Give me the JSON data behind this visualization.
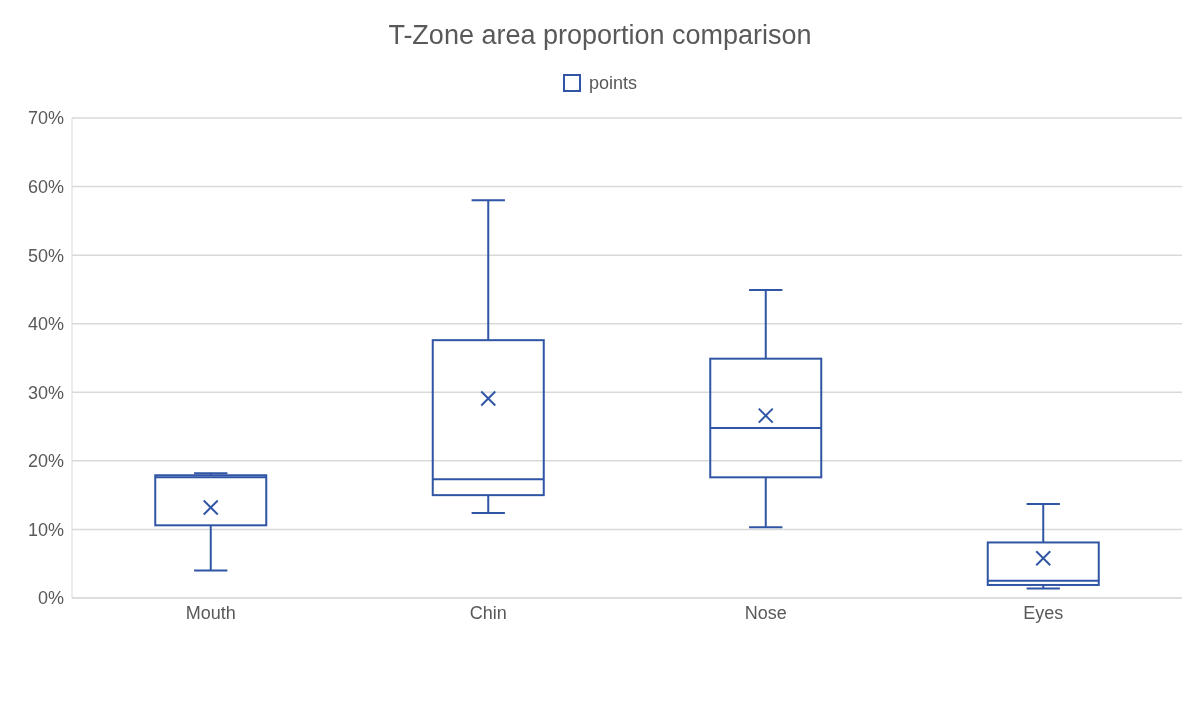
{
  "chart_data": {
    "type": "box",
    "title": "T-Zone area proportion comparison",
    "categories": [
      "Mouth",
      "Chin",
      "Nose",
      "Eyes"
    ],
    "series": [
      {
        "name": "points",
        "color": "#2f55a4",
        "boxes": [
          {
            "low": 4.0,
            "q1": 10.6,
            "median": 17.6,
            "q3": 17.9,
            "high": 18.2,
            "mean": 13.2
          },
          {
            "low": 12.4,
            "q1": 15.0,
            "median": 17.3,
            "q3": 37.6,
            "high": 58.0,
            "mean": 29.1
          },
          {
            "low": 10.3,
            "q1": 17.6,
            "median": 24.8,
            "q3": 34.9,
            "high": 44.9,
            "mean": 26.6
          },
          {
            "low": 1.4,
            "q1": 1.9,
            "median": 2.5,
            "q3": 8.1,
            "high": 13.7,
            "mean": 5.8
          }
        ]
      }
    ],
    "ylim": [
      0,
      70
    ],
    "yticks": [
      {
        "value": 0,
        "label": "0%"
      },
      {
        "value": 10,
        "label": "10%"
      },
      {
        "value": 20,
        "label": "20%"
      },
      {
        "value": 30,
        "label": "30%"
      },
      {
        "value": 40,
        "label": "40%"
      },
      {
        "value": 50,
        "label": "50%"
      },
      {
        "value": 60,
        "label": "60%"
      },
      {
        "value": 70,
        "label": "70%"
      }
    ],
    "grid": "y",
    "legend": "top"
  }
}
